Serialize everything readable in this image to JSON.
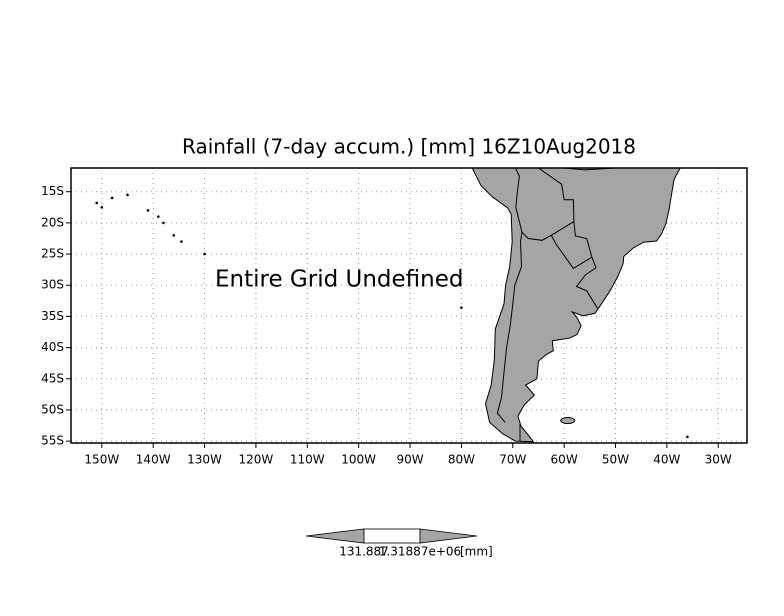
{
  "map": {
    "title": "Rainfall (7-day accum.) [mm] 16Z10Aug2018",
    "message": "Entire Grid Undefined",
    "lon_range": [
      -156,
      -24.4
    ],
    "lat_range": [
      -11.2,
      -55.3
    ],
    "grid": true,
    "land_color": "#a5a5a5",
    "lon_ticks": [
      {
        "value": -150,
        "label": "150W"
      },
      {
        "value": -140,
        "label": "140W"
      },
      {
        "value": -130,
        "label": "130W"
      },
      {
        "value": -120,
        "label": "120W"
      },
      {
        "value": -110,
        "label": "110W"
      },
      {
        "value": -100,
        "label": "100W"
      },
      {
        "value": -90,
        "label": "90W"
      },
      {
        "value": -80,
        "label": "80W"
      },
      {
        "value": -70,
        "label": "70W"
      },
      {
        "value": -60,
        "label": "60W"
      },
      {
        "value": -50,
        "label": "50W"
      },
      {
        "value": -40,
        "label": "40W"
      },
      {
        "value": -30,
        "label": "30W"
      }
    ],
    "lat_ticks": [
      {
        "value": -15,
        "label": "15S"
      },
      {
        "value": -20,
        "label": "20S"
      },
      {
        "value": -25,
        "label": "25S"
      },
      {
        "value": -30,
        "label": "30S"
      },
      {
        "value": -35,
        "label": "35S"
      },
      {
        "value": -40,
        "label": "40S"
      },
      {
        "value": -45,
        "label": "45S"
      },
      {
        "value": -50,
        "label": "50S"
      },
      {
        "value": -55,
        "label": "55S"
      }
    ]
  },
  "colorbar": {
    "labels": [
      "131.887",
      "1.31887e+06"
    ],
    "unit": "[mm]"
  }
}
